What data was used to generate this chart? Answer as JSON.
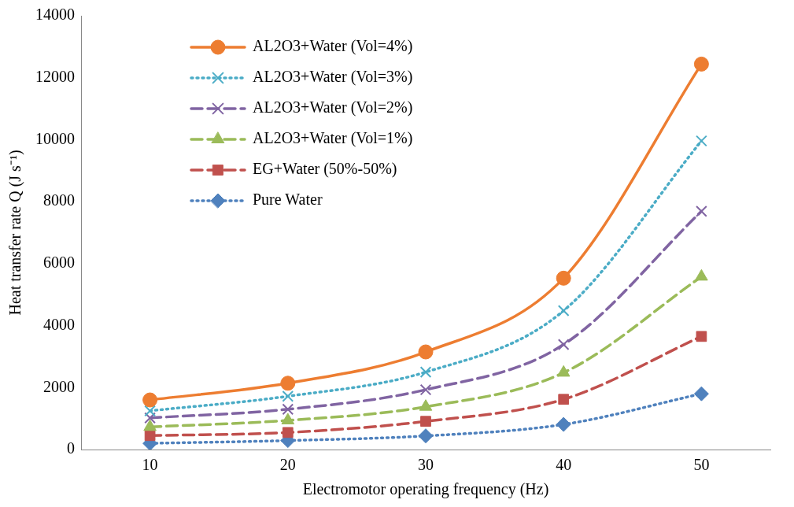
{
  "chart_data": {
    "type": "line",
    "xlabel": "Electromotor operating frequency (Hz)",
    "ylabel": "Heat transfer rate Q (J s⁻¹)",
    "categories": [
      "10",
      "20",
      "30",
      "40",
      "50"
    ],
    "ylim": [
      0,
      14000
    ],
    "yticks": [
      0,
      2000,
      4000,
      6000,
      8000,
      10000,
      12000,
      14000
    ],
    "grid": false,
    "legend": "top left",
    "series": [
      {
        "name": "AL2O3+Water (Vol=4%)",
        "color": "#ed7d31",
        "marker": "circle",
        "line_style": "solid",
        "values": [
          1600,
          2140,
          3150,
          5530,
          12440
        ]
      },
      {
        "name": "AL2O3+Water (Vol=3%)",
        "color": "#4bacc6",
        "marker": "cross",
        "line_style": "dotted",
        "values": [
          1250,
          1720,
          2500,
          4480,
          9960
        ]
      },
      {
        "name": "AL2O3+Water (Vol=2%)",
        "color": "#8064a2",
        "marker": "cross",
        "line_style": "dashed",
        "values": [
          1020,
          1300,
          1930,
          3390,
          7690
        ]
      },
      {
        "name": "AL2O3+Water (Vol=1%)",
        "color": "#9bbb59",
        "marker": "triangle",
        "line_style": "dashed",
        "values": [
          730,
          940,
          1380,
          2480,
          5580
        ]
      },
      {
        "name": "EG+Water (50%-50%)",
        "color": "#c0504d",
        "marker": "square",
        "line_style": "dashed",
        "values": [
          450,
          550,
          910,
          1620,
          3650
        ]
      },
      {
        "name": "Pure Water",
        "color": "#4f81bd",
        "marker": "diamond",
        "line_style": "dotted",
        "values": [
          200,
          290,
          440,
          810,
          1800
        ]
      }
    ]
  }
}
